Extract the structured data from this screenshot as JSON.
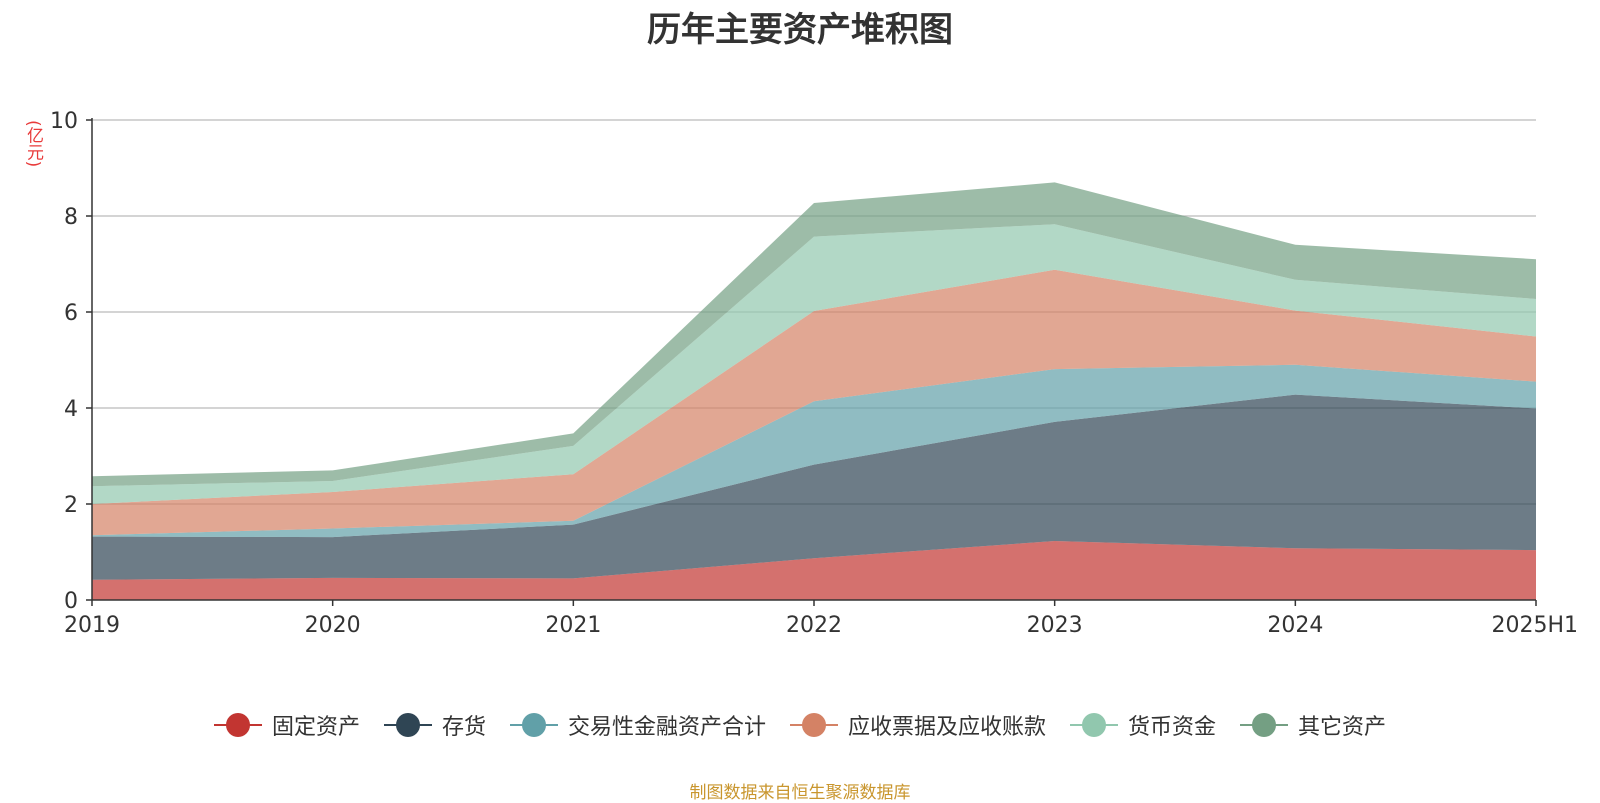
{
  "chart_data": {
    "type": "area",
    "stacked": true,
    "title": "历年主要资产堆积图",
    "ylabel": "(亿元)",
    "categories": [
      "2019",
      "2020",
      "2021",
      "2022",
      "2023",
      "2024",
      "2025H1"
    ],
    "ylim": [
      0,
      10
    ],
    "yticks": [
      0,
      2,
      4,
      6,
      8,
      10
    ],
    "grid": true,
    "legend_position": "bottom",
    "series": [
      {
        "name": "固定资产",
        "color": "#c23531",
        "values": [
          0.42,
          0.46,
          0.45,
          0.87,
          1.23,
          1.08,
          1.04
        ]
      },
      {
        "name": "存货",
        "color": "#2f4554",
        "values": [
          0.9,
          0.85,
          1.12,
          1.95,
          2.48,
          3.2,
          2.95
        ]
      },
      {
        "name": "交易性金融资产合计",
        "color": "#61a0a8",
        "values": [
          0.03,
          0.18,
          0.08,
          1.32,
          1.1,
          0.62,
          0.56
        ]
      },
      {
        "name": "应收票据及应收账款",
        "color": "#d48265",
        "values": [
          0.65,
          0.76,
          0.97,
          1.88,
          2.07,
          1.13,
          0.94
        ]
      },
      {
        "name": "货币资金",
        "color": "#91c7ae",
        "values": [
          0.37,
          0.23,
          0.59,
          1.55,
          0.95,
          0.64,
          0.78
        ]
      },
      {
        "name": "其它资产",
        "color": "#749f83",
        "values": [
          0.21,
          0.22,
          0.26,
          0.7,
          0.87,
          0.73,
          0.83
        ]
      }
    ]
  },
  "footer": {
    "source": "制图数据来自恒生聚源数据库"
  }
}
